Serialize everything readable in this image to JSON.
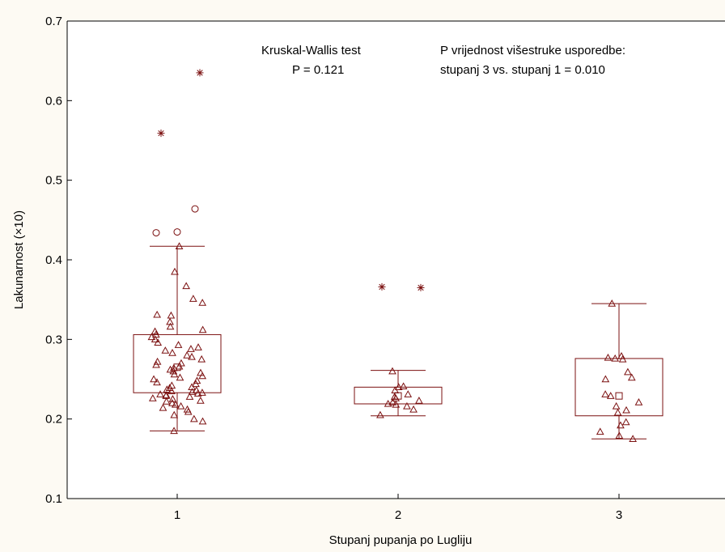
{
  "chart_data": {
    "type": "box",
    "xlabel": "Stupanj pupanja po Lugliju",
    "ylabel": "Lakunarnost (×10)",
    "ylim": [
      0.1,
      0.7
    ],
    "yticks": [
      "0.1",
      "0.2",
      "0.3",
      "0.4",
      "0.5",
      "0.6",
      "0.7"
    ],
    "categories": [
      "1",
      "2",
      "3"
    ],
    "annotations": {
      "left_line1": "Kruskal-Wallis test",
      "left_line2": "P = 0.121",
      "right_line1": "P vrijednost višestruke usporedbe:",
      "right_line2": "stupanj 3 vs. stupanj 1 = 0.010"
    },
    "color": "#7b1010",
    "boxes": [
      {
        "category": "1",
        "whisker_low": 0.185,
        "q1": 0.233,
        "median": 0.265,
        "q3": 0.306,
        "whisker_high": 0.417,
        "outliers": [
          0.434,
          0.435,
          0.464
        ],
        "extremes": [
          0.559,
          0.635
        ]
      },
      {
        "category": "2",
        "whisker_low": 0.204,
        "q1": 0.219,
        "median": 0.229,
        "q3": 0.24,
        "whisker_high": 0.261,
        "outliers": [],
        "extremes": [
          0.366,
          0.365
        ]
      },
      {
        "category": "3",
        "whisker_low": 0.175,
        "q1": 0.204,
        "median": 0.229,
        "q3": 0.276,
        "whisker_high": 0.345,
        "outliers": [],
        "extremes": []
      }
    ],
    "points": [
      {
        "x": 1,
        "y": [
          0.185,
          0.197,
          0.2,
          0.205,
          0.209,
          0.212,
          0.214,
          0.216,
          0.218,
          0.22,
          0.222,
          0.223,
          0.225,
          0.226,
          0.228,
          0.229,
          0.23,
          0.231,
          0.232,
          0.233,
          0.234,
          0.235,
          0.236,
          0.237,
          0.239,
          0.24,
          0.242,
          0.244,
          0.246,
          0.248,
          0.25,
          0.252,
          0.254,
          0.256,
          0.258,
          0.26,
          0.262,
          0.264,
          0.266,
          0.268,
          0.27,
          0.272,
          0.275,
          0.278,
          0.28,
          0.283,
          0.286,
          0.288,
          0.29,
          0.293,
          0.296,
          0.3,
          0.303,
          0.306,
          0.31,
          0.312,
          0.316,
          0.322,
          0.33,
          0.331,
          0.346,
          0.351,
          0.367,
          0.385,
          0.417
        ]
      },
      {
        "x": 2,
        "y": [
          0.205,
          0.212,
          0.216,
          0.218,
          0.219,
          0.221,
          0.223,
          0.226,
          0.228,
          0.231,
          0.236,
          0.24,
          0.241,
          0.26
        ]
      },
      {
        "x": 3,
        "y": [
          0.175,
          0.179,
          0.184,
          0.192,
          0.196,
          0.208,
          0.211,
          0.216,
          0.221,
          0.229,
          0.231,
          0.25,
          0.252,
          0.259,
          0.275,
          0.276,
          0.277,
          0.279,
          0.345
        ]
      }
    ]
  }
}
